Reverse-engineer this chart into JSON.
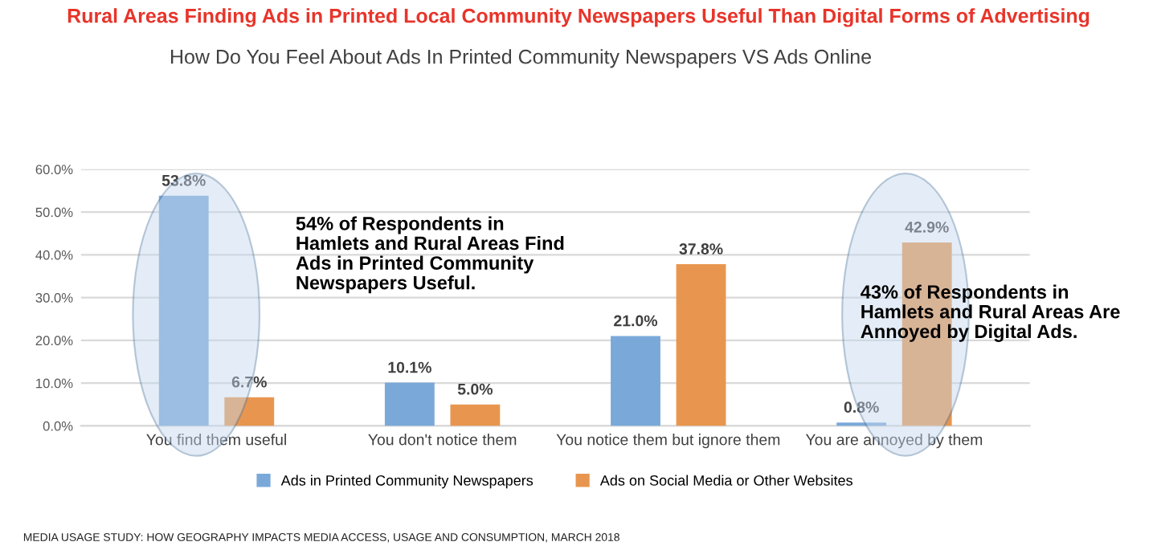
{
  "chart_data": {
    "type": "bar",
    "title": "Rural Areas Finding Ads in Printed Local Community Newspapers Useful Than Digital Forms of Advertising",
    "subtitle": "How Do You Feel About Ads In Printed Community Newspapers VS Ads Online",
    "categories": [
      "You find them useful",
      "You don't notice them",
      "You notice them but ignore them",
      "You are annoyed by them"
    ],
    "series": [
      {
        "name": "Ads in Printed Community Newspapers",
        "color": "#7aa9d9",
        "values": [
          53.8,
          10.1,
          21.0,
          0.8
        ],
        "value_labels": [
          "53.8%",
          "10.1%",
          "21.0%",
          "0.8%"
        ]
      },
      {
        "name": "Ads on Social Media or Other Websites",
        "color": "#e8964f",
        "values": [
          6.7,
          5.0,
          37.8,
          42.9
        ],
        "value_labels": [
          "6.7%",
          "5.0%",
          "37.8%",
          "42.9%"
        ]
      }
    ],
    "ylim": [
      0,
      60
    ],
    "yticks": [
      {
        "value": 0,
        "label": "0.0%"
      },
      {
        "value": 10,
        "label": "10.0%"
      },
      {
        "value": 20,
        "label": "20.0%"
      },
      {
        "value": 30,
        "label": "30.0%"
      },
      {
        "value": 40,
        "label": "40.0%"
      },
      {
        "value": 50,
        "label": "50.0%"
      },
      {
        "value": 60,
        "label": "60.0%"
      }
    ],
    "grid": "y",
    "legend": "bottom",
    "annotations": [
      "54% of Respondents in\nHamlets and Rural Areas Find\nAds in Printed Community\nNewspapers Useful.",
      "43% of Respondents in\nHamlets and Rural Areas Are\nAnnoyed by Digital Ads.",
      "MEDIA USAGE STUDY: HOW GEOGRAPHY IMPACTS MEDIA ACCESS, USAGE AND CONSUMPTION, MARCH 2018"
    ]
  }
}
